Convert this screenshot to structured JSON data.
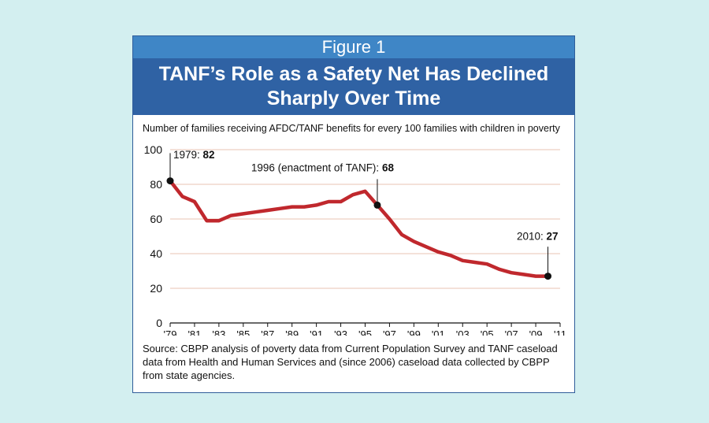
{
  "figure_label": "Figure 1",
  "title_line1": "TANF’s Role as a Safety Net Has Declined",
  "title_line2": "Sharply Over Time",
  "subtitle": "Number of families receiving AFDC/TANF benefits for every 100 families with children in poverty",
  "source": "Source: CBPP analysis of poverty data from Current Population Survey and TANF caseload data from Health and Human Services and (since 2006) caseload data collected by CBPP from state agencies.",
  "colors": {
    "line": "#c0282d",
    "label_band": "#3f86c6",
    "title_band": "#2f62a4",
    "grid": "#e8c3b3",
    "background": "#d3eff0"
  },
  "chart_data": {
    "type": "line",
    "title": "TANF’s Role as a Safety Net Has Declined Sharply Over Time",
    "ylabel": "Number of families receiving AFDC/TANF benefits for every 100 families with children in poverty",
    "xlabel": "",
    "xlim": [
      1979,
      2011
    ],
    "ylim": [
      0,
      100
    ],
    "yticks": [
      0,
      20,
      40,
      60,
      80,
      100
    ],
    "xticks": [
      {
        "year": 1979,
        "label": "'79"
      },
      {
        "year": 1981,
        "label": "'81"
      },
      {
        "year": 1983,
        "label": "'83"
      },
      {
        "year": 1985,
        "label": "'85"
      },
      {
        "year": 1987,
        "label": "'87"
      },
      {
        "year": 1989,
        "label": "'89"
      },
      {
        "year": 1991,
        "label": "'91"
      },
      {
        "year": 1993,
        "label": "'93"
      },
      {
        "year": 1995,
        "label": "'95"
      },
      {
        "year": 1997,
        "label": "'97"
      },
      {
        "year": 1999,
        "label": "'99"
      },
      {
        "year": 2001,
        "label": "'01"
      },
      {
        "year": 2003,
        "label": "'03"
      },
      {
        "year": 2005,
        "label": "'05"
      },
      {
        "year": 2007,
        "label": "'07"
      },
      {
        "year": 2009,
        "label": "'09"
      },
      {
        "year": 2011,
        "label": "'11"
      }
    ],
    "grid": true,
    "x": [
      1979,
      1980,
      1981,
      1982,
      1983,
      1984,
      1985,
      1986,
      1987,
      1988,
      1989,
      1990,
      1991,
      1992,
      1993,
      1994,
      1995,
      1996,
      1997,
      1998,
      1999,
      2000,
      2001,
      2002,
      2003,
      2004,
      2005,
      2006,
      2007,
      2008,
      2009,
      2010
    ],
    "series": [
      {
        "values": [
          82,
          73,
          70,
          59,
          59,
          62,
          63,
          64,
          65,
          66,
          67,
          67,
          68,
          70,
          70,
          74,
          76,
          68,
          60,
          51,
          47,
          44,
          41,
          39,
          36,
          35,
          34,
          31,
          29,
          28,
          27,
          27
        ]
      }
    ],
    "annotations": [
      {
        "x": 1979,
        "y": 82,
        "text": "1979: ",
        "bold": "82"
      },
      {
        "x": 1996,
        "y": 68,
        "text": "1996 (enactment of TANF): ",
        "bold": "68"
      },
      {
        "x": 2010,
        "y": 27,
        "text": "2010: ",
        "bold": "27"
      }
    ]
  }
}
